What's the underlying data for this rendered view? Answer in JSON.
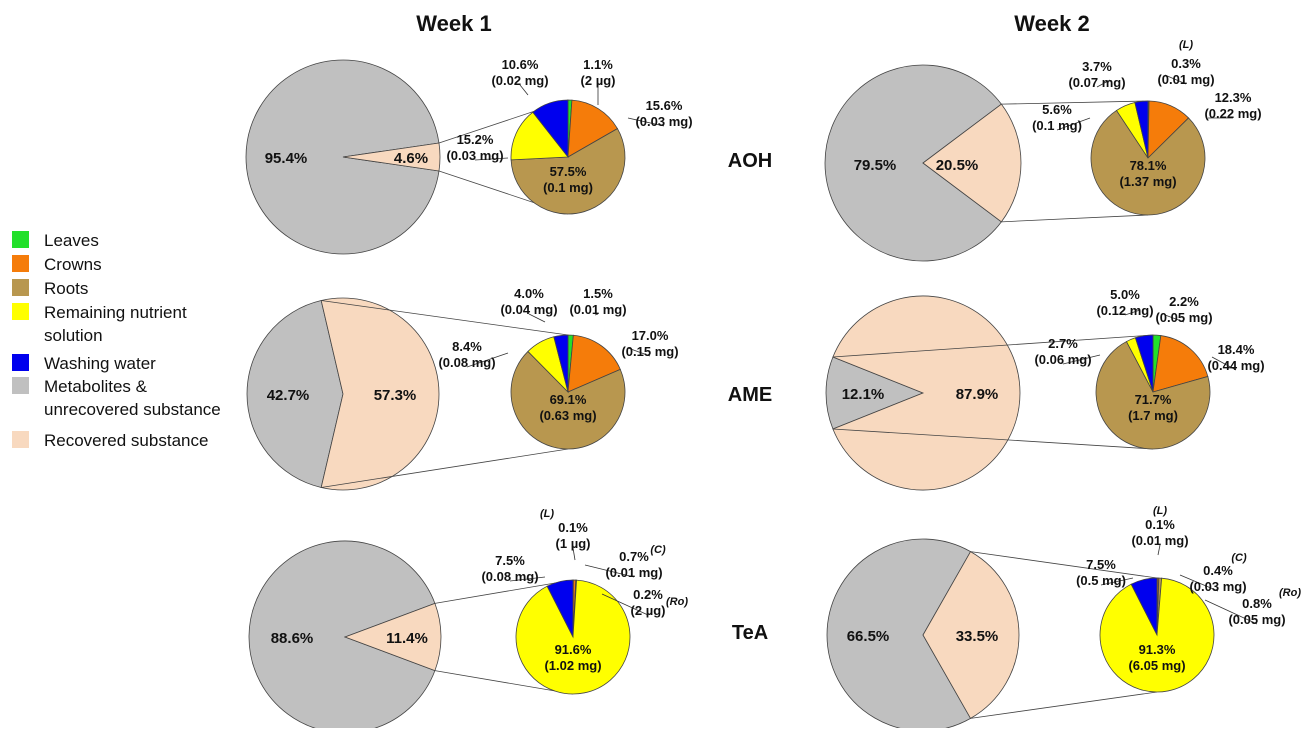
{
  "colors": {
    "leaves": "#22e02a",
    "crowns": "#f57c0a",
    "roots": "#b8974f",
    "remaining": "#ffff00",
    "washing": "#0000ee",
    "metabolites": "#c0c0c0",
    "recovered": "#f8d9bf"
  },
  "legend": [
    {
      "key": "leaves",
      "lines": [
        "Leaves"
      ]
    },
    {
      "key": "crowns",
      "lines": [
        "Crowns"
      ]
    },
    {
      "key": "roots",
      "lines": [
        "Roots"
      ]
    },
    {
      "key": "remaining",
      "lines": [
        "Remaining nutrient",
        "solution"
      ]
    },
    {
      "key": "washing",
      "lines": [
        "Washing water"
      ]
    },
    {
      "key": "metabolites",
      "lines": [
        "Metabolites &",
        "unrecovered substance"
      ]
    },
    {
      "key": "recovered",
      "lines": [
        "Recovered substance"
      ]
    }
  ],
  "columns": [
    "Week 1",
    "Week 2"
  ],
  "rows": [
    "AOH",
    "AME",
    "TeA"
  ],
  "chart_data": [
    {
      "type": "pie",
      "substance": "AOH",
      "week": "Week 1",
      "outer": [
        {
          "key": "metabolites",
          "value": 95.4,
          "label": "95.4%"
        },
        {
          "key": "recovered",
          "value": 4.6,
          "label": "4.6%"
        }
      ],
      "inner": [
        {
          "key": "leaves",
          "value": 1.1,
          "labels": [
            "1.1%",
            "(2 µg)"
          ]
        },
        {
          "key": "crowns",
          "value": 15.6,
          "labels": [
            "15.6%",
            "(0.03 mg)"
          ]
        },
        {
          "key": "roots",
          "value": 57.5,
          "labels": [
            "57.5%",
            "(0.1 mg)"
          ]
        },
        {
          "key": "remaining",
          "value": 15.2,
          "labels": [
            "15.2%",
            "(0.03 mg)"
          ]
        },
        {
          "key": "washing",
          "value": 10.6,
          "labels": [
            "10.6%",
            "(0.02 mg)"
          ]
        }
      ]
    },
    {
      "type": "pie",
      "substance": "AOH",
      "week": "Week 2",
      "outer": [
        {
          "key": "metabolites",
          "value": 79.5,
          "label": "79.5%"
        },
        {
          "key": "recovered",
          "value": 20.5,
          "label": "20.5%"
        }
      ],
      "inner": [
        {
          "key": "leaves",
          "value": 0.3,
          "labels": [
            "0.3%",
            "(0.01 mg)"
          ],
          "note": "(L)"
        },
        {
          "key": "crowns",
          "value": 12.3,
          "labels": [
            "12.3%",
            "(0.22 mg)"
          ]
        },
        {
          "key": "roots",
          "value": 78.1,
          "labels": [
            "78.1%",
            "(1.37 mg)"
          ]
        },
        {
          "key": "remaining",
          "value": 5.6,
          "labels": [
            "5.6%",
            "(0.1 mg)"
          ]
        },
        {
          "key": "washing",
          "value": 3.7,
          "labels": [
            "3.7%",
            "(0.07 mg)"
          ]
        }
      ]
    },
    {
      "type": "pie",
      "substance": "AME",
      "week": "Week 1",
      "outer": [
        {
          "key": "metabolites",
          "value": 42.7,
          "label": "42.7%"
        },
        {
          "key": "recovered",
          "value": 57.3,
          "label": "57.3%"
        }
      ],
      "inner": [
        {
          "key": "leaves",
          "value": 1.5,
          "labels": [
            "1.5%",
            "(0.01 mg)"
          ]
        },
        {
          "key": "crowns",
          "value": 17.0,
          "labels": [
            "17.0%",
            "(0.15 mg)"
          ]
        },
        {
          "key": "roots",
          "value": 69.1,
          "labels": [
            "69.1%",
            "(0.63 mg)"
          ]
        },
        {
          "key": "remaining",
          "value": 8.4,
          "labels": [
            "8.4%",
            "(0.08 mg)"
          ]
        },
        {
          "key": "washing",
          "value": 4.0,
          "labels": [
            "4.0%",
            "(0.04 mg)"
          ]
        }
      ]
    },
    {
      "type": "pie",
      "substance": "AME",
      "week": "Week 2",
      "outer": [
        {
          "key": "metabolites",
          "value": 12.1,
          "label": "12.1%"
        },
        {
          "key": "recovered",
          "value": 87.9,
          "label": "87.9%"
        }
      ],
      "inner": [
        {
          "key": "leaves",
          "value": 2.2,
          "labels": [
            "2.2%",
            "(0.05 mg)"
          ]
        },
        {
          "key": "crowns",
          "value": 18.4,
          "labels": [
            "18.4%",
            "(0.44 mg)"
          ]
        },
        {
          "key": "roots",
          "value": 71.7,
          "labels": [
            "71.7%",
            "(1.7 mg)"
          ]
        },
        {
          "key": "remaining",
          "value": 2.7,
          "labels": [
            "2.7%",
            "(0.06 mg)"
          ]
        },
        {
          "key": "washing",
          "value": 5.0,
          "labels": [
            "5.0%",
            "(0.12 mg)"
          ]
        }
      ]
    },
    {
      "type": "pie",
      "substance": "TeA",
      "week": "Week 1",
      "outer": [
        {
          "key": "metabolites",
          "value": 88.6,
          "label": "88.6%"
        },
        {
          "key": "recovered",
          "value": 11.4,
          "label": "11.4%"
        }
      ],
      "inner": [
        {
          "key": "leaves",
          "value": 0.1,
          "labels": [
            "0.1%",
            "(1 µg)"
          ],
          "note": "(L)"
        },
        {
          "key": "crowns",
          "value": 0.7,
          "labels": [
            "0.7%",
            "(0.01 mg)"
          ],
          "note": "(C)"
        },
        {
          "key": "roots",
          "value": 0.2,
          "labels": [
            "0.2%",
            "(2 µg)"
          ],
          "note": "(Ro)"
        },
        {
          "key": "remaining",
          "value": 91.6,
          "labels": [
            "91.6%",
            "(1.02 mg)"
          ]
        },
        {
          "key": "washing",
          "value": 7.5,
          "labels": [
            "7.5%",
            "(0.08 mg)"
          ]
        }
      ]
    },
    {
      "type": "pie",
      "substance": "TeA",
      "week": "Week 2",
      "outer": [
        {
          "key": "metabolites",
          "value": 66.5,
          "label": "66.5%"
        },
        {
          "key": "recovered",
          "value": 33.5,
          "label": "33.5%"
        }
      ],
      "inner": [
        {
          "key": "leaves",
          "value": 0.1,
          "labels": [
            "0.1%",
            "(0.01 mg)"
          ],
          "note": "(L)"
        },
        {
          "key": "crowns",
          "value": 0.4,
          "labels": [
            "0.4%",
            "(0.03 mg)"
          ],
          "note": "(C)"
        },
        {
          "key": "roots",
          "value": 0.8,
          "labels": [
            "0.8%",
            "(0.05 mg)"
          ],
          "note": "(Ro)"
        },
        {
          "key": "remaining",
          "value": 91.3,
          "labels": [
            "91.3%",
            "(6.05 mg)"
          ]
        },
        {
          "key": "washing",
          "value": 7.5,
          "labels": [
            "7.5%",
            "(0.5 mg)"
          ]
        }
      ]
    }
  ]
}
